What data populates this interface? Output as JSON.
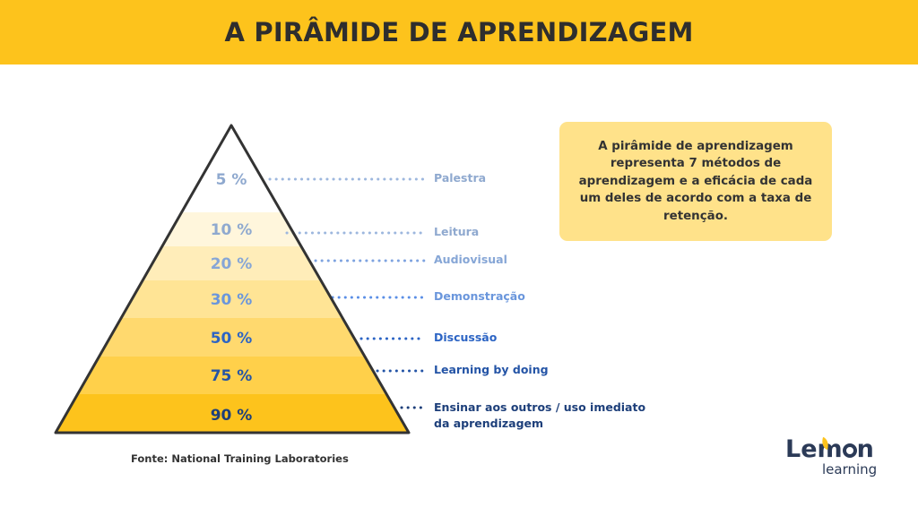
{
  "title": "A PIRÂMIDE DE APRENDIZAGEM",
  "levels": [
    {
      "percent": "5 %",
      "label": "Palestra",
      "fill": "#ffffff",
      "text_color": "#8fa9cf",
      "label_color": "#8fa9cf",
      "dot_color": "#9db7de"
    },
    {
      "percent": "10 %",
      "label": "Leitura",
      "fill": "#fff6dc",
      "text_color": "#8fa9cf",
      "label_color": "#8fa9cf",
      "dot_color": "#9db7de"
    },
    {
      "percent": "20 %",
      "label": "Audiovisual",
      "fill": "#ffedb9",
      "text_color": "#86a6d6",
      "label_color": "#86a6d6",
      "dot_color": "#7ea3e0"
    },
    {
      "percent": "30 %",
      "label": "Demonstração",
      "fill": "#ffe495",
      "text_color": "#6a96dc",
      "label_color": "#6a96dc",
      "dot_color": "#5b8fe6"
    },
    {
      "percent": "50 %",
      "label": "Discussão",
      "fill": "#ffd96e",
      "text_color": "#2c64c4",
      "label_color": "#2c64c4",
      "dot_color": "#2c64c4"
    },
    {
      "percent": "75 %",
      "label": "Learning by doing",
      "fill": "#ffd04a",
      "text_color": "#2454a6",
      "label_color": "#2454a6",
      "dot_color": "#2454a6"
    },
    {
      "percent": "90 %",
      "label": "Ensinar aos outros / uso imediato da aprendizagem",
      "fill": "#fdc31c",
      "text_color": "#1d3f7a",
      "label_color": "#1d3f7a",
      "dot_color": "#1d3f7a"
    }
  ],
  "info_text": "A pirâmide de aprendizagem representa 7 métodos de aprendizagem e a eficácia de cada um deles de acordo com a taxa de retenção.",
  "source": "Fonte:  National Training Laboratories",
  "logo": {
    "main_prefix": "Lem",
    "main_suffix": "n",
    "sub": "learning"
  },
  "colors": {
    "banner": "#fdc31c",
    "outline": "#333333",
    "logo_text": "#2b3a57"
  }
}
